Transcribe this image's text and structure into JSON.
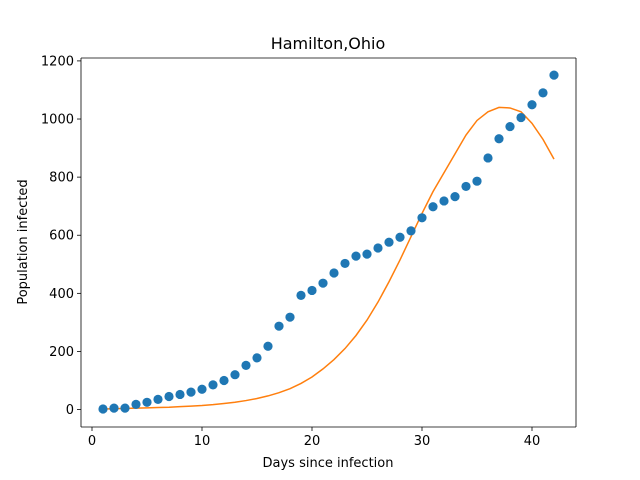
{
  "chart_data": {
    "type": "scatter",
    "title": "Hamilton,Ohio",
    "xlabel": "Days since infection",
    "ylabel": "Population infected",
    "xlim": [
      -1,
      44
    ],
    "ylim": [
      -60,
      1210
    ],
    "xticks": [
      0,
      10,
      20,
      30,
      40
    ],
    "yticks": [
      0,
      200,
      400,
      600,
      800,
      1000,
      1200
    ],
    "grid": false,
    "series": [
      {
        "kind": "scatter",
        "color": "#1f77b4",
        "x": [
          1,
          2,
          3,
          4,
          5,
          6,
          7,
          8,
          9,
          10,
          11,
          12,
          13,
          14,
          15,
          16,
          17,
          18,
          19,
          20,
          21,
          22,
          23,
          24,
          25,
          26,
          27,
          28,
          29,
          30,
          31,
          32,
          33,
          34,
          35,
          36,
          37,
          38,
          39,
          40,
          41,
          42
        ],
        "y": [
          2,
          5,
          5,
          18,
          25,
          35,
          45,
          52,
          60,
          70,
          85,
          100,
          120,
          152,
          178,
          218,
          287,
          318,
          393,
          410,
          435,
          470,
          503,
          528,
          535,
          556,
          576,
          593,
          615,
          660,
          698,
          718,
          733,
          768,
          786,
          866,
          932,
          974,
          1005,
          1049,
          1090,
          1151
        ]
      },
      {
        "kind": "line",
        "color": "#ff7f0e",
        "x": [
          1,
          2,
          3,
          4,
          5,
          6,
          7,
          8,
          9,
          10,
          11,
          12,
          13,
          14,
          15,
          16,
          17,
          18,
          19,
          20,
          21,
          22,
          23,
          24,
          25,
          26,
          27,
          28,
          29,
          30,
          31,
          32,
          33,
          34,
          35,
          36,
          37,
          38,
          39,
          40,
          41,
          42
        ],
        "y": [
          2,
          3,
          4,
          5,
          6,
          7,
          8,
          10,
          12,
          14,
          17,
          21,
          25,
          31,
          38,
          47,
          58,
          72,
          90,
          112,
          140,
          172,
          210,
          255,
          308,
          370,
          440,
          515,
          595,
          675,
          750,
          815,
          880,
          945,
          995,
          1025,
          1040,
          1038,
          1025,
          985,
          930,
          862
        ]
      }
    ]
  }
}
